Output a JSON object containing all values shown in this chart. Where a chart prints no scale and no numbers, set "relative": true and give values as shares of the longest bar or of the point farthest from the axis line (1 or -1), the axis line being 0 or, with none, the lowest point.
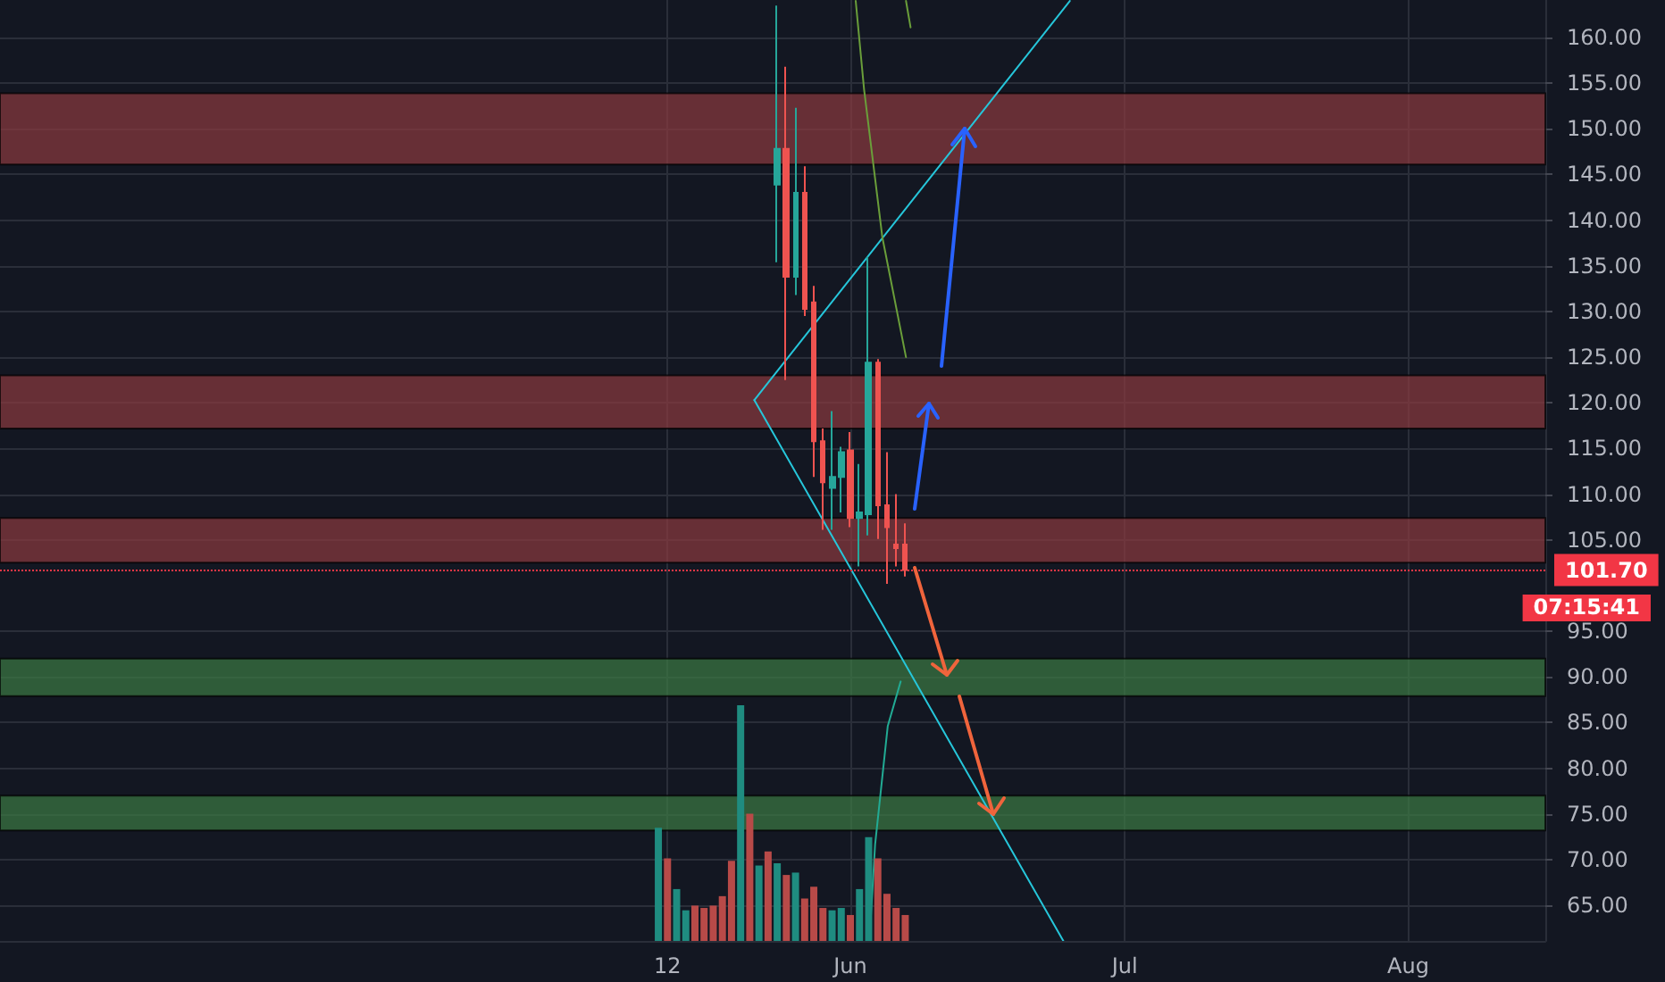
{
  "chart_data": [
    {
      "type": "candlestick",
      "xlim": [
        "--02-28",
        "--08-16"
      ],
      "xticks": [
        {
          "value": "--05-12",
          "label": "12"
        },
        {
          "value": "--06-01",
          "label": "Jun"
        },
        {
          "value": "--07-01",
          "label": "Jul"
        },
        {
          "value": "--08-01",
          "label": "Aug"
        }
      ],
      "ylim": [
        61.1,
        164.1
      ],
      "yticks": [
        {
          "value": 65,
          "label": "65.00"
        },
        {
          "value": 70,
          "label": "70.00"
        },
        {
          "value": 75,
          "label": "75.00"
        },
        {
          "value": 80,
          "label": "80.00"
        },
        {
          "value": 85,
          "label": "85.00"
        },
        {
          "value": 90,
          "label": "90.00"
        },
        {
          "value": 95,
          "label": "95.00"
        },
        {
          "value": 105,
          "label": "105.00"
        },
        {
          "value": 110,
          "label": "110.00"
        },
        {
          "value": 115,
          "label": "115.00"
        },
        {
          "value": 120,
          "label": "120.00"
        },
        {
          "value": 125,
          "label": "125.00"
        },
        {
          "value": 130,
          "label": "130.00"
        },
        {
          "value": 135,
          "label": "135.00"
        },
        {
          "value": 140,
          "label": "140.00"
        },
        {
          "value": 145,
          "label": "145.00"
        },
        {
          "value": 150,
          "label": "150.00"
        },
        {
          "value": 155,
          "label": "155.00"
        },
        {
          "value": 160,
          "label": "160.00"
        }
      ],
      "grid": true,
      "series": [
        {
          "x": [
            "--05-24",
            "--05-25",
            "--05-26",
            "--05-27",
            "--05-28",
            "--05-29",
            "--05-30",
            "--05-31",
            "--06-01",
            "--06-02",
            "--06-03",
            "--06-04",
            "--06-05",
            "--06-06",
            "--06-07"
          ],
          "ohlc": [
            [
              143.9,
              163.5,
              135.4,
              147.8
            ],
            [
              147.8,
              156.8,
              122.5,
              133.8
            ],
            [
              133.8,
              152.3,
              131.8,
              143.0
            ],
            [
              143.0,
              145.9,
              129.5,
              130.3
            ],
            [
              131.0,
              132.8,
              111.9,
              115.8
            ],
            [
              115.8,
              117.2,
              106.1,
              111.3
            ],
            [
              110.7,
              119.1,
              106.1,
              111.9
            ],
            [
              111.9,
              115.2,
              108.0,
              114.6
            ],
            [
              114.8,
              116.8,
              106.4,
              107.4
            ],
            [
              107.4,
              113.3,
              102.1,
              108.0
            ],
            [
              107.8,
              136.0,
              105.5,
              124.4
            ],
            [
              124.4,
              124.8,
              105.1,
              108.8
            ],
            [
              108.8,
              114.6,
              100.2,
              106.4
            ],
            [
              104.5,
              110.0,
              102.1,
              104.1
            ],
            [
              104.5,
              106.8,
              101.0,
              101.7
            ]
          ],
          "colors": [
            "#26a69a",
            "#ef5350",
            "#26a69a",
            "#ef5350",
            "#ef5350",
            "#ef5350",
            "#26a69a",
            "#26a69a",
            "#ef5350",
            "#26a69a",
            "#26a69a",
            "#ef5350",
            "#ef5350",
            "#ef5350",
            "#ef5350"
          ]
        },
        {
          "type": "line",
          "color": "#26c6da",
          "x": [
            "--05-21T12:00",
            "--06-25T00:00"
          ],
          "values": [
            120.3,
            164.0
          ]
        },
        {
          "type": "line",
          "color": "#26c6da",
          "x": [
            "--05-21T12:00",
            "--06-24T07:00"
          ],
          "values": [
            120.3,
            61.1
          ]
        },
        {
          "type": "line",
          "color": "#6a9e3a",
          "x": [
            "--06-01T14:00",
            "--06-02T12:00",
            "--06-04T12:00",
            "--06-07T02:00"
          ],
          "values": [
            164.0,
            154.3,
            138.1,
            125.0
          ]
        },
        {
          "type": "line",
          "color": "#6a9e3a",
          "x": [
            "--06-07T02:00",
            "--06-07T14:00"
          ],
          "values": [
            164.0,
            161.1
          ]
        },
        {
          "type": "line",
          "color": "#22ab94",
          "x": [
            "--06-03T02:00",
            "--06-03T17:00",
            "--06-05T02:00",
            "--06-06T12:00"
          ],
          "values": [
            61.1,
            71.7,
            84.6,
            89.5
          ]
        }
      ],
      "bands": [
        {
          "axis": "y",
          "from": 146.1,
          "to": 153.9,
          "color": "#8b3a3e"
        },
        {
          "axis": "y",
          "from": 117.2,
          "to": 123.0,
          "color": "#8b3a3e"
        },
        {
          "axis": "y",
          "from": 102.5,
          "to": 107.4,
          "color": "#8b3a3e"
        },
        {
          "axis": "y",
          "from": 87.9,
          "to": 92.0,
          "color": "#3c7a43"
        },
        {
          "axis": "y",
          "from": 73.2,
          "to": 77.0,
          "color": "#3c7a43"
        }
      ],
      "ref_lines": [
        {
          "axis": "y",
          "value": 101.7,
          "label": "101.70",
          "color": "#f23645",
          "line_style": "dotted"
        }
      ],
      "annotations": [
        "07:15:41"
      ]
    },
    {
      "type": "bar",
      "relative": true,
      "xlim": [
        "--02-28",
        "--08-16"
      ],
      "x": [
        "--05-11",
        "--05-12",
        "--05-13",
        "--05-14",
        "--05-15",
        "--05-16",
        "--05-17",
        "--05-18",
        "--05-19",
        "--05-20",
        "--05-21",
        "--05-22",
        "--05-23",
        "--05-24",
        "--05-25",
        "--05-26",
        "--05-27",
        "--05-28",
        "--05-29",
        "--05-30",
        "--05-31",
        "--06-01",
        "--06-02",
        "--06-03",
        "--06-04",
        "--06-05",
        "--06-06",
        "--06-07"
      ],
      "values": [
        0.48,
        0.35,
        0.22,
        0.13,
        0.15,
        0.14,
        0.15,
        0.19,
        0.34,
        1,
        0.54,
        0.32,
        0.38,
        0.33,
        0.28,
        0.29,
        0.18,
        0.23,
        0.14,
        0.13,
        0.14,
        0.11,
        0.22,
        0.44,
        0.35,
        0.2,
        0.14,
        0.11
      ],
      "colors": [
        "#1f8c80",
        "#b84a48",
        "#1f8c80",
        "#1f8c80",
        "#b84a48",
        "#b84a48",
        "#b84a48",
        "#b84a48",
        "#b84a48",
        "#1f8c80",
        "#b84a48",
        "#1f8c80",
        "#b84a48",
        "#1f8c80",
        "#b84a48",
        "#1f8c80",
        "#b84a48",
        "#b84a48",
        "#b84a48",
        "#1f8c80",
        "#1f8c80",
        "#b84a48",
        "#1f8c80",
        "#1f8c80",
        "#b84a48",
        "#b84a48",
        "#b84a48",
        "#b84a48"
      ]
    }
  ]
}
